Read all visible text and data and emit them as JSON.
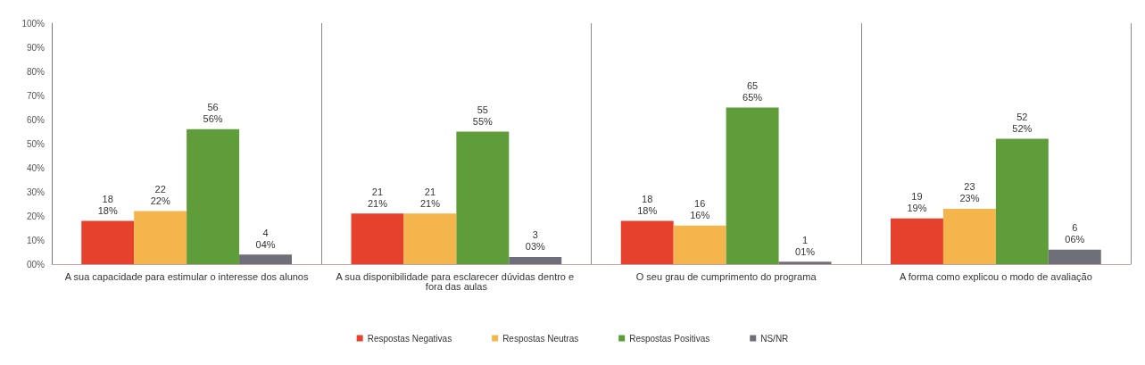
{
  "chart_data": {
    "type": "bar",
    "categories": [
      "A sua capacidade para estimular o interesse dos alunos",
      "A sua disponibilidade para esclarecer dúvidas dentro e fora das aulas",
      "O seu grau de cumprimento do programa",
      "A forma como explicou o modo de avaliação"
    ],
    "series": [
      {
        "name": "Respostas Negativas",
        "color": "#e5412c",
        "values": [
          18,
          21,
          18,
          19
        ],
        "value_labels": [
          "18\n18%",
          "21\n21%",
          "18\n18%",
          "19\n19%"
        ]
      },
      {
        "name": "Respostas Neutras",
        "color": "#f4b54c",
        "values": [
          22,
          21,
          16,
          23
        ],
        "value_labels": [
          "22\n22%",
          "21\n21%",
          "16\n16%",
          "23\n23%"
        ]
      },
      {
        "name": "Respostas Positivas",
        "color": "#5f9c3a",
        "values": [
          56,
          55,
          65,
          52
        ],
        "value_labels": [
          "56\n56%",
          "55\n55%",
          "65\n65%",
          "52\n52%"
        ]
      },
      {
        "name": "NS/NR",
        "color": "#6e6f78",
        "values": [
          4,
          3,
          1,
          6
        ],
        "value_labels": [
          "4\n04%",
          "3\n03%",
          "1\n01%",
          "6\n06%"
        ]
      }
    ],
    "ylim": [
      0,
      100
    ],
    "yticks": [
      {
        "value": 0,
        "label": "00%"
      },
      {
        "value": 10,
        "label": "10%"
      },
      {
        "value": 20,
        "label": "20%"
      },
      {
        "value": 30,
        "label": "30%"
      },
      {
        "value": 40,
        "label": "40%"
      },
      {
        "value": 50,
        "label": "50%"
      },
      {
        "value": 60,
        "label": "60%"
      },
      {
        "value": 70,
        "label": "70%"
      },
      {
        "value": 80,
        "label": "80%"
      },
      {
        "value": 90,
        "label": "90%"
      },
      {
        "value": 100,
        "label": "100%"
      }
    ],
    "grid": "x",
    "legend": "bottom"
  }
}
